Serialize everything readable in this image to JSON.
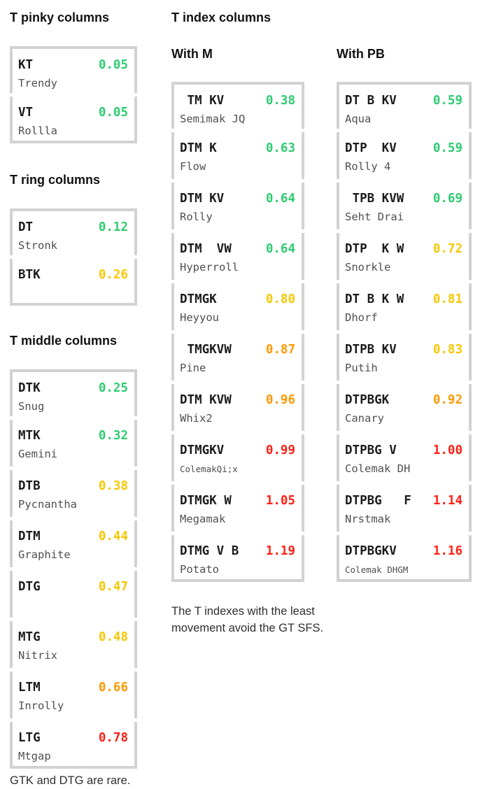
{
  "palette": {
    "green": "#2ecc71",
    "yellow": "#f6c700",
    "orange": "#ff9800",
    "red": "#ff1f14",
    "border": "#d2d2d2",
    "code": "#1c1c1c",
    "name": "#4f4f4f"
  },
  "left": {
    "groups": [
      {
        "title": "T pinky columns",
        "items": [
          {
            "code": "KT",
            "name": "Trendy",
            "value": "0.05",
            "tone": "green"
          },
          {
            "code": "VT",
            "name": "Rollla",
            "value": "0.05",
            "tone": "green"
          }
        ]
      },
      {
        "title": "T ring columns",
        "items": [
          {
            "code": "DT",
            "name": "Stronk",
            "value": "0.12",
            "tone": "green"
          },
          {
            "code": "BTK",
            "name": "",
            "value": "0.26",
            "tone": "yellow"
          }
        ]
      },
      {
        "title": "T middle columns",
        "items": [
          {
            "code": "DTK",
            "name": "Snug",
            "value": "0.25",
            "tone": "green"
          },
          {
            "code": "MTK",
            "name": "Gemini",
            "value": "0.32",
            "tone": "green"
          },
          {
            "code": "DTB",
            "name": "Pycnantha",
            "value": "0.38",
            "tone": "yellow"
          },
          {
            "code": "DTM",
            "name": "Graphite",
            "value": "0.44",
            "tone": "yellow"
          },
          {
            "code": "DTG",
            "name": "",
            "value": "0.47",
            "tone": "yellow"
          },
          {
            "code": "MTG",
            "name": "Nitrix",
            "value": "0.48",
            "tone": "yellow"
          },
          {
            "code": "LTM",
            "name": "Inrolly",
            "value": "0.66",
            "tone": "orange"
          },
          {
            "code": "LTG",
            "name": "Mtgap",
            "value": "0.78",
            "tone": "red"
          }
        ]
      }
    ],
    "footnote": "GTK and DTG are rare."
  },
  "index": {
    "title": "T index columns",
    "with_m": {
      "subtitle": "With M",
      "items": [
        {
          "code": " TM KV",
          "name": "Semimak JQ",
          "value": "0.38",
          "tone": "green"
        },
        {
          "code": "DTM K",
          "name": "Flow",
          "value": "0.63",
          "tone": "green"
        },
        {
          "code": "DTM KV",
          "name": "Rolly",
          "value": "0.64",
          "tone": "green"
        },
        {
          "code": "DTM  VW",
          "name": "Hyperroll",
          "value": "0.64",
          "tone": "green"
        },
        {
          "code": "DTMGK",
          "name": "Heyyou",
          "value": "0.80",
          "tone": "yellow"
        },
        {
          "code": " TMGKVW",
          "name": "Pine",
          "value": "0.87",
          "tone": "orange"
        },
        {
          "code": "DTM KVW",
          "name": "Whix2",
          "value": "0.96",
          "tone": "orange"
        },
        {
          "code": "DTMGKV",
          "name": "ColemakQi;x",
          "value": "0.99",
          "tone": "red",
          "small": true
        },
        {
          "code": "DTMGK W",
          "name": "Megamak",
          "value": "1.05",
          "tone": "red"
        },
        {
          "code": "DTMG V B",
          "name": "Potato",
          "value": "1.19",
          "tone": "red"
        }
      ]
    },
    "with_pb": {
      "subtitle": "With PB",
      "items": [
        {
          "code": "DT B KV",
          "name": "Aqua",
          "value": "0.59",
          "tone": "green"
        },
        {
          "code": "DTP  KV",
          "name": "Rolly 4",
          "value": "0.59",
          "tone": "green"
        },
        {
          "code": " TPB KVW",
          "name": "Seht Drai",
          "value": "0.69",
          "tone": "green"
        },
        {
          "code": "DTP  K W",
          "name": "Snorkle",
          "value": "0.72",
          "tone": "yellow"
        },
        {
          "code": "DT B K W",
          "name": "Dhorf",
          "value": "0.81",
          "tone": "yellow"
        },
        {
          "code": "DTPB KV",
          "name": "Putih",
          "value": "0.83",
          "tone": "yellow"
        },
        {
          "code": "DTPBGK",
          "name": "Canary",
          "value": "0.92",
          "tone": "orange"
        },
        {
          "code": "DTPBG V",
          "name": "Colemak DH",
          "value": "1.00",
          "tone": "red"
        },
        {
          "code": "DTPBG   F",
          "name": "Nrstmak",
          "value": "1.14",
          "tone": "red"
        },
        {
          "code": "DTPBGKV",
          "name": "Colemak DHGM",
          "value": "1.16",
          "tone": "red",
          "small": true
        }
      ]
    },
    "footnote": "The T indexes with the least\nmovement avoid the GT SFS."
  }
}
